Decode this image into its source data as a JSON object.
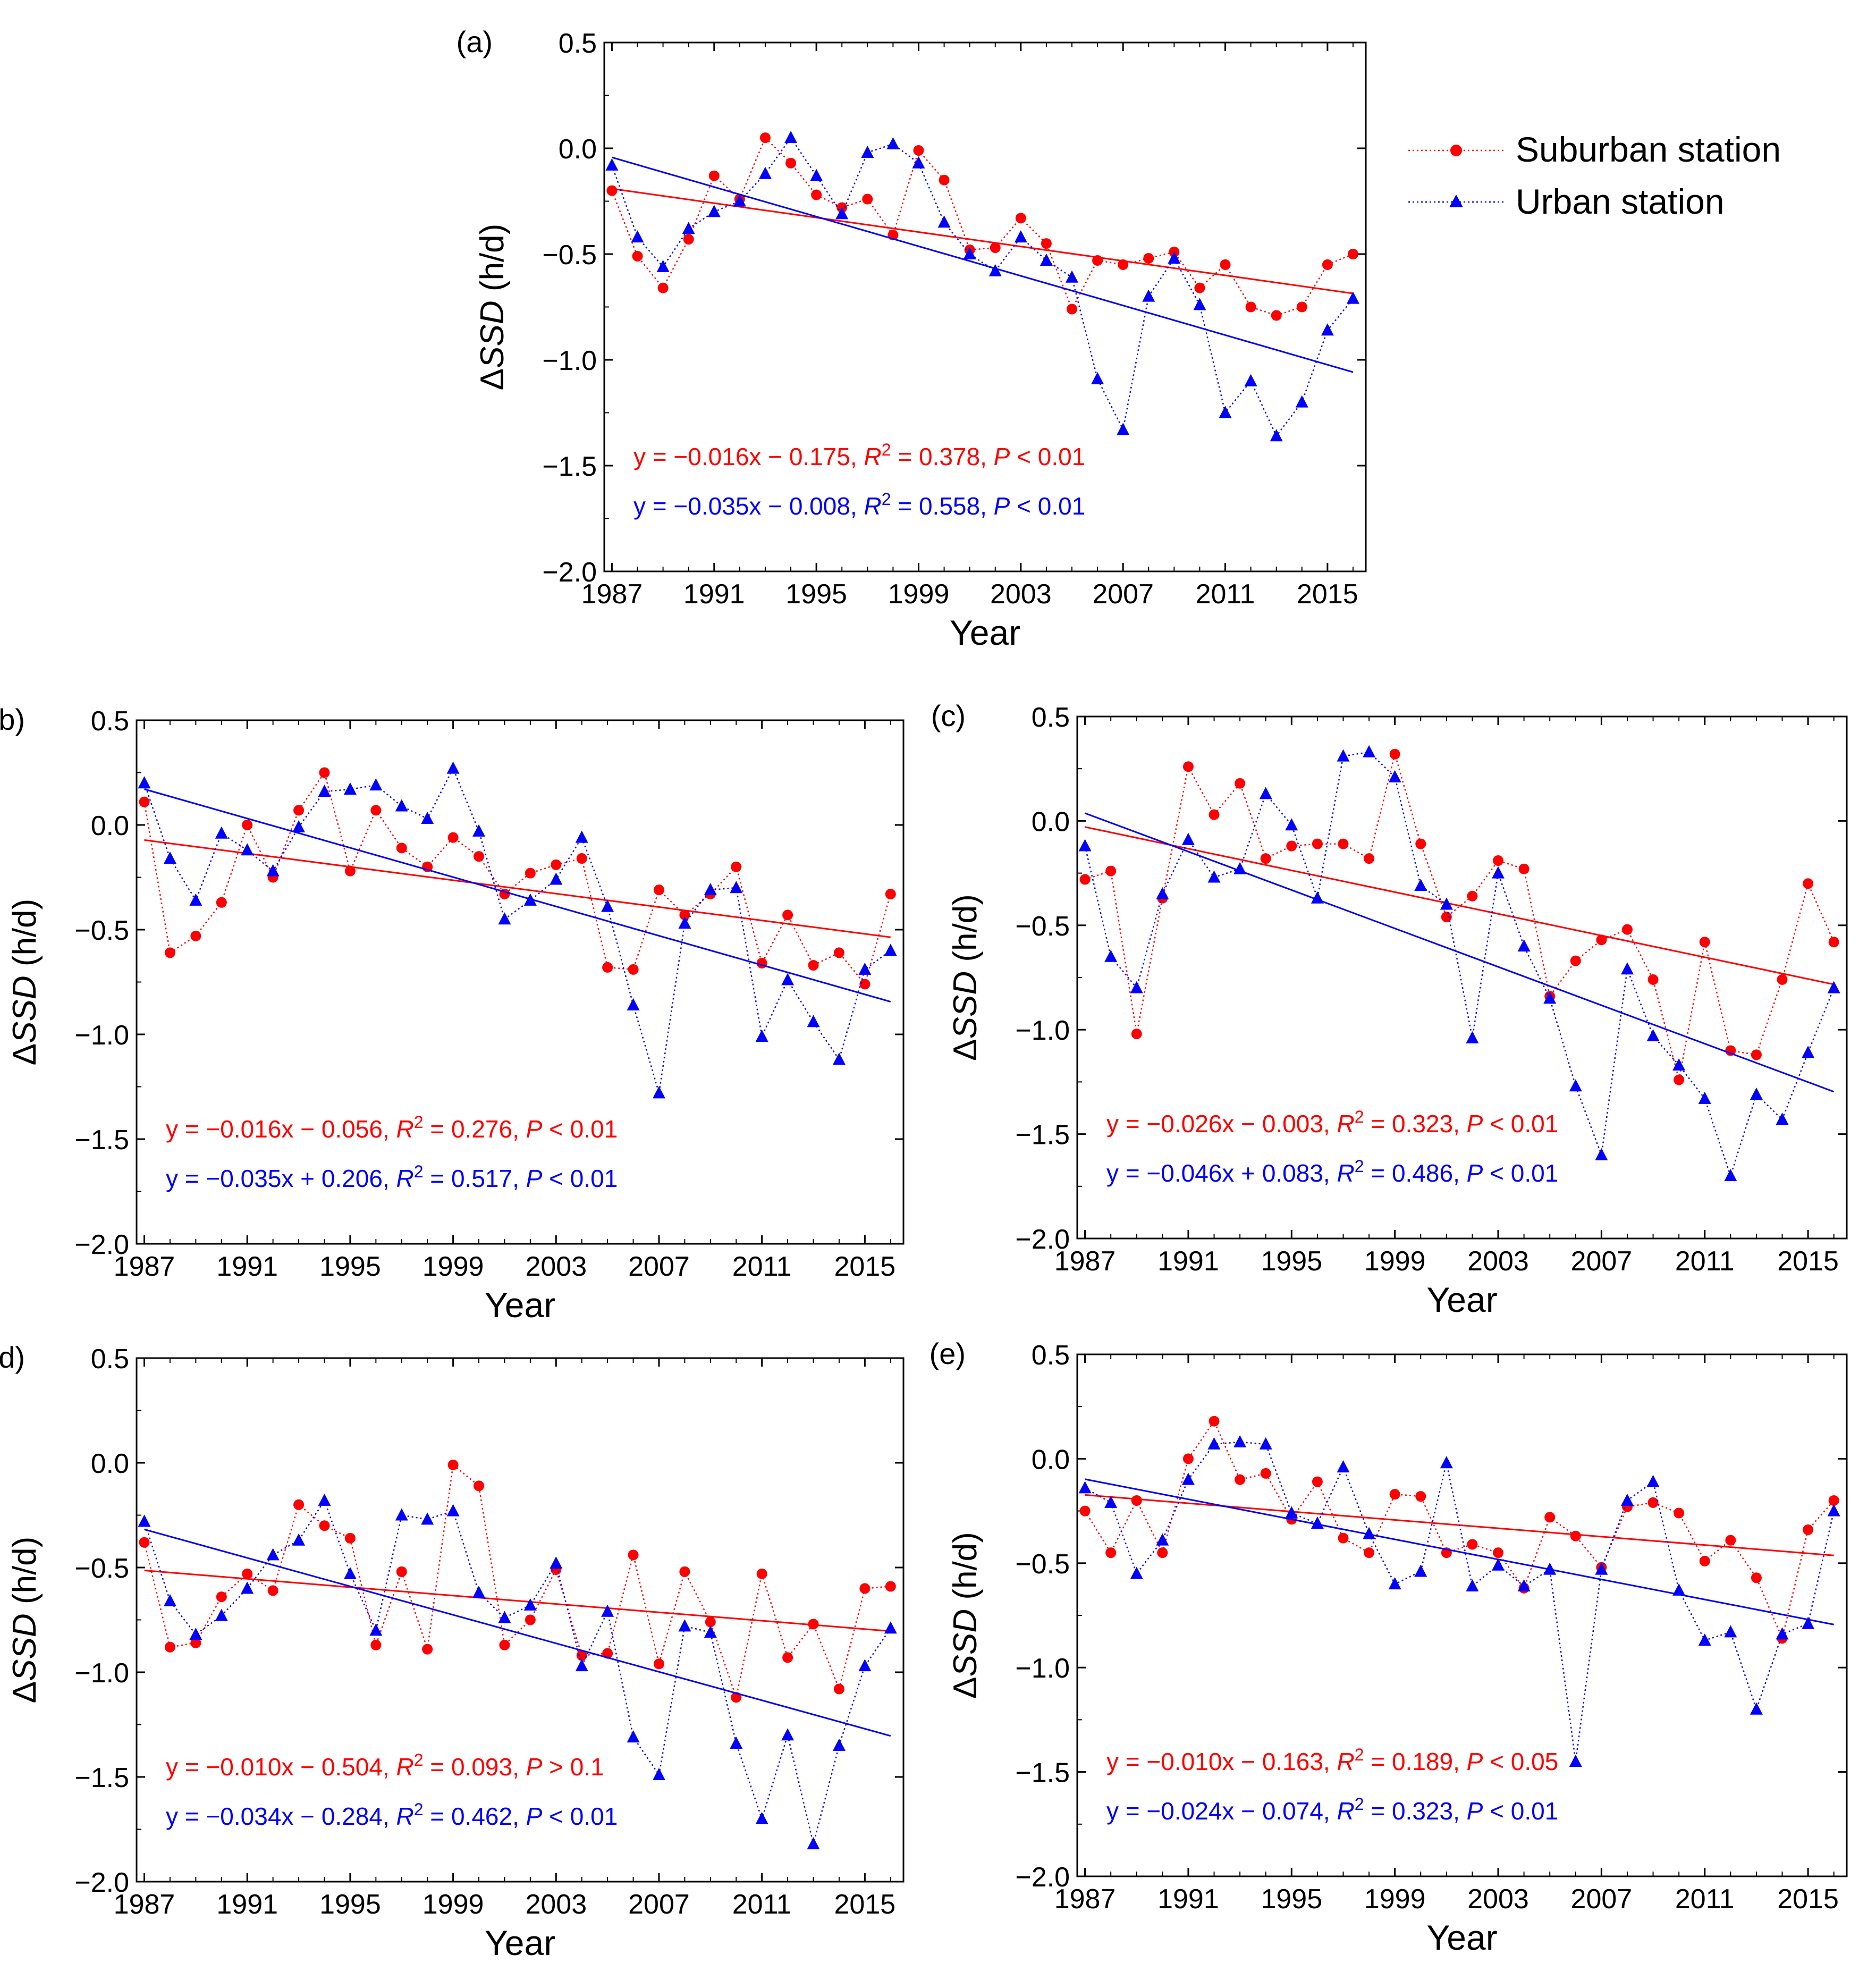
{
  "legend": {
    "suburban_label": "Suburban station",
    "urban_label": "Urban station"
  },
  "colors": {
    "suburban": "#ff0000",
    "urban": "#0000ff",
    "axis": "#000000"
  },
  "chart_data": [
    {
      "panel": "(a)",
      "type": "line",
      "xlabel": "Year",
      "ylabel_delta": "Δ",
      "ylabel_italic": "SSD",
      "ylabel_unit": " (h/d)",
      "xlim": [
        1986.7,
        2016.5
      ],
      "ylim": [
        -2.0,
        0.5
      ],
      "xticks": [
        1987,
        1991,
        1995,
        1999,
        2003,
        2007,
        2011,
        2015
      ],
      "yticks": [
        0.5,
        0.0,
        -0.5,
        -1.0,
        -1.5,
        -2.0
      ],
      "ytick_labels": [
        "0.5",
        "0.0",
        "−0.5",
        "−1.0",
        "−1.5",
        "−2.0"
      ],
      "x": [
        1987,
        1988,
        1989,
        1990,
        1991,
        1992,
        1993,
        1994,
        1995,
        1996,
        1997,
        1998,
        1999,
        2000,
        2001,
        2002,
        2003,
        2004,
        2005,
        2006,
        2007,
        2008,
        2009,
        2010,
        2011,
        2012,
        2013,
        2014,
        2015,
        2016
      ],
      "series": [
        {
          "name": "Suburban station",
          "values": [
            -0.2,
            -0.51,
            -0.66,
            -0.43,
            -0.13,
            -0.24,
            0.05,
            -0.07,
            -0.22,
            -0.28,
            -0.24,
            -0.41,
            -0.01,
            -0.15,
            -0.48,
            -0.47,
            -0.33,
            -0.45,
            -0.76,
            -0.53,
            -0.55,
            -0.52,
            -0.49,
            -0.66,
            -0.55,
            -0.75,
            -0.79,
            -0.75,
            -0.55,
            -0.5
          ],
          "fit": [
            -0.191,
            -0.686
          ],
          "equation": {
            "eq": "y = −0.016x − 0.175, ",
            "r2": "= 0.378, ",
            "p": " < 0.01"
          }
        },
        {
          "name": "Urban station",
          "values": [
            -0.08,
            -0.42,
            -0.56,
            -0.38,
            -0.3,
            -0.25,
            -0.12,
            0.05,
            -0.13,
            -0.31,
            -0.02,
            0.02,
            -0.07,
            -0.35,
            -0.5,
            -0.58,
            -0.42,
            -0.53,
            -0.61,
            -1.09,
            -1.33,
            -0.7,
            -0.52,
            -0.74,
            -1.25,
            -1.1,
            -1.36,
            -1.2,
            -0.86,
            -0.71
          ],
          "fit": [
            -0.043,
            -1.058
          ],
          "equation": {
            "eq": "y = −0.035x − 0.008, ",
            "r2": "= 0.558, ",
            "p": " < 0.01"
          }
        }
      ]
    },
    {
      "panel": "(b)",
      "type": "line",
      "xlabel": "Year",
      "ylabel_delta": "Δ",
      "ylabel_italic": "SSD",
      "ylabel_unit": " (h/d)",
      "xlim": [
        1986.7,
        2016.5
      ],
      "ylim": [
        -2.0,
        0.5
      ],
      "xticks": [
        1987,
        1991,
        1995,
        1999,
        2003,
        2007,
        2011,
        2015
      ],
      "yticks": [
        0.5,
        0.0,
        -0.5,
        -1.0,
        -1.5,
        -2.0
      ],
      "ytick_labels": [
        "0.5",
        "0.0",
        "−0.5",
        "−1.0",
        "−1.5",
        "−2.0"
      ],
      "x": [
        1987,
        1988,
        1989,
        1990,
        1991,
        1992,
        1993,
        1994,
        1995,
        1996,
        1997,
        1998,
        1999,
        2000,
        2001,
        2002,
        2003,
        2004,
        2005,
        2006,
        2007,
        2008,
        2009,
        2010,
        2011,
        2012,
        2013,
        2014,
        2015,
        2016
      ],
      "series": [
        {
          "name": "Suburban station",
          "values": [
            0.11,
            -0.61,
            -0.53,
            -0.37,
            0.0,
            -0.25,
            0.07,
            0.25,
            -0.22,
            0.07,
            -0.11,
            -0.2,
            -0.06,
            -0.15,
            -0.33,
            -0.23,
            -0.19,
            -0.16,
            -0.68,
            -0.69,
            -0.31,
            -0.43,
            -0.33,
            -0.2,
            -0.66,
            -0.43,
            -0.67,
            -0.61,
            -0.76,
            -0.33
          ],
          "fit": [
            -0.072,
            -0.536
          ],
          "equation": {
            "eq": "y = −0.016x − 0.056, ",
            "r2": "= 0.276, ",
            "p": " < 0.01"
          }
        },
        {
          "name": "Urban station",
          "values": [
            0.2,
            -0.16,
            -0.36,
            -0.04,
            -0.12,
            -0.22,
            -0.01,
            0.16,
            0.17,
            0.19,
            0.09,
            0.03,
            0.27,
            -0.03,
            -0.45,
            -0.36,
            -0.26,
            -0.06,
            -0.39,
            -0.86,
            -1.28,
            -0.47,
            -0.31,
            -0.3,
            -1.01,
            -0.74,
            -0.94,
            -1.12,
            -0.69,
            -0.6
          ],
          "fit": [
            0.171,
            -0.844
          ],
          "equation": {
            "eq": "y = −0.035x + 0.206, ",
            "r2": "= 0.517, ",
            "p": " < 0.01"
          }
        }
      ]
    },
    {
      "panel": "(c)",
      "type": "line",
      "xlabel": "Year",
      "ylabel_delta": "Δ",
      "ylabel_italic": "SSD",
      "ylabel_unit": " (h/d)",
      "xlim": [
        1986.7,
        2016.5
      ],
      "ylim": [
        -2.0,
        0.5
      ],
      "xticks": [
        1987,
        1991,
        1995,
        1999,
        2003,
        2007,
        2011,
        2015
      ],
      "yticks": [
        0.5,
        0.0,
        -0.5,
        -1.0,
        -1.5,
        -2.0
      ],
      "ytick_labels": [
        "0.5",
        "0.0",
        "−0.5",
        "−1.0",
        "−1.5",
        "−2.0"
      ],
      "x": [
        1987,
        1988,
        1989,
        1990,
        1991,
        1992,
        1993,
        1994,
        1995,
        1996,
        1997,
        1998,
        1999,
        2000,
        2001,
        2002,
        2003,
        2004,
        2005,
        2006,
        2007,
        2008,
        2009,
        2010,
        2011,
        2012,
        2013,
        2014,
        2015,
        2016
      ],
      "series": [
        {
          "name": "Suburban station",
          "values": [
            -0.28,
            -0.24,
            -1.02,
            -0.37,
            0.26,
            0.03,
            0.18,
            -0.18,
            -0.12,
            -0.11,
            -0.11,
            -0.18,
            0.32,
            -0.11,
            -0.46,
            -0.36,
            -0.19,
            -0.23,
            -0.84,
            -0.67,
            -0.57,
            -0.52,
            -0.76,
            -1.24,
            -0.58,
            -1.1,
            -1.12,
            -0.76,
            -0.3,
            -0.58
          ],
          "fit": [
            -0.029,
            -0.783
          ],
          "equation": {
            "eq": "y = −0.026x − 0.003, ",
            "r2": "= 0.323, ",
            "p": " < 0.01"
          }
        },
        {
          "name": "Urban station",
          "values": [
            -0.12,
            -0.65,
            -0.8,
            -0.35,
            -0.09,
            -0.27,
            -0.23,
            0.13,
            -0.02,
            -0.37,
            0.31,
            0.33,
            0.21,
            -0.31,
            -0.4,
            -1.04,
            -0.25,
            -0.6,
            -0.85,
            -1.27,
            -1.6,
            -0.71,
            -1.03,
            -1.17,
            -1.33,
            -1.7,
            -1.31,
            -1.43,
            -1.11,
            -0.8
          ],
          "fit": [
            0.037,
            -1.297
          ],
          "equation": {
            "eq": "y = −0.046x + 0.083, ",
            "r2": "= 0.486, ",
            "p": " < 0.01"
          }
        }
      ]
    },
    {
      "panel": "(d)",
      "type": "line",
      "xlabel": "Year",
      "ylabel_delta": "Δ",
      "ylabel_italic": "SSD",
      "ylabel_unit": " (h/d)",
      "xlim": [
        1986.7,
        2016.5
      ],
      "ylim": [
        -2.0,
        0.5
      ],
      "xticks": [
        1987,
        1991,
        1995,
        1999,
        2003,
        2007,
        2011,
        2015
      ],
      "yticks": [
        0.5,
        0.0,
        -0.5,
        -1.0,
        -1.5,
        -2.0
      ],
      "ytick_labels": [
        "0.5",
        "0.0",
        "−0.5",
        "−1.0",
        "−1.5",
        "−2.0"
      ],
      "x": [
        1987,
        1988,
        1989,
        1990,
        1991,
        1992,
        1993,
        1994,
        1995,
        1996,
        1997,
        1998,
        1999,
        2000,
        2001,
        2002,
        2003,
        2004,
        2005,
        2006,
        2007,
        2008,
        2009,
        2010,
        2011,
        2012,
        2013,
        2014,
        2015,
        2016
      ],
      "series": [
        {
          "name": "Suburban station",
          "values": [
            -0.38,
            -0.88,
            -0.86,
            -0.64,
            -0.53,
            -0.61,
            -0.2,
            -0.3,
            -0.36,
            -0.87,
            -0.52,
            -0.89,
            -0.01,
            -0.11,
            -0.87,
            -0.75,
            -0.51,
            -0.92,
            -0.91,
            -0.44,
            -0.96,
            -0.52,
            -0.76,
            -1.12,
            -0.53,
            -0.93,
            -0.77,
            -1.08,
            -0.6,
            -0.59
          ],
          "fit": [
            -0.514,
            -0.804
          ],
          "equation": {
            "eq": "y = −0.010x − 0.504, ",
            "r2": "= 0.093, ",
            "p": " > 0.1"
          }
        },
        {
          "name": "Urban station",
          "values": [
            -0.28,
            -0.66,
            -0.82,
            -0.73,
            -0.6,
            -0.44,
            -0.37,
            -0.18,
            -0.53,
            -0.8,
            -0.25,
            -0.27,
            -0.23,
            -0.62,
            -0.74,
            -0.68,
            -0.48,
            -0.97,
            -0.71,
            -1.31,
            -1.49,
            -0.78,
            -0.81,
            -1.34,
            -1.7,
            -1.3,
            -1.82,
            -1.35,
            -0.97,
            -0.79
          ],
          "fit": [
            -0.318,
            -1.304
          ],
          "equation": {
            "eq": "y = −0.034x − 0.284, ",
            "r2": "= 0.462, ",
            "p": " < 0.01"
          }
        }
      ]
    },
    {
      "panel": "(e)",
      "type": "line",
      "xlabel": "Year",
      "ylabel_delta": "Δ",
      "ylabel_italic": "SSD",
      "ylabel_unit": " (h/d)",
      "xlim": [
        1986.7,
        2016.5
      ],
      "ylim": [
        -2.0,
        0.5
      ],
      "xticks": [
        1987,
        1991,
        1995,
        1999,
        2003,
        2007,
        2011,
        2015
      ],
      "yticks": [
        0.5,
        0.0,
        -0.5,
        -1.0,
        -1.5,
        -2.0
      ],
      "ytick_labels": [
        "0.5",
        "0.0",
        "−0.5",
        "−1.0",
        "−1.5",
        "−2.0"
      ],
      "x": [
        1987,
        1988,
        1989,
        1990,
        1991,
        1992,
        1993,
        1994,
        1995,
        1996,
        1997,
        1998,
        1999,
        2000,
        2001,
        2002,
        2003,
        2004,
        2005,
        2006,
        2007,
        2008,
        2009,
        2010,
        2011,
        2012,
        2013,
        2014,
        2015,
        2016
      ],
      "series": [
        {
          "name": "Suburban station",
          "values": [
            -0.25,
            -0.45,
            -0.2,
            -0.45,
            0.0,
            0.18,
            -0.1,
            -0.07,
            -0.29,
            -0.11,
            -0.38,
            -0.45,
            -0.17,
            -0.18,
            -0.45,
            -0.41,
            -0.45,
            -0.62,
            -0.28,
            -0.37,
            -0.52,
            -0.23,
            -0.21,
            -0.26,
            -0.49,
            -0.39,
            -0.57,
            -0.86,
            -0.34,
            -0.2
          ],
          "fit": [
            -0.173,
            -0.463
          ],
          "equation": {
            "eq": "y = −0.010x − 0.163, ",
            "r2": "= 0.189, ",
            "p": " < 0.05"
          }
        },
        {
          "name": "Urban station",
          "values": [
            -0.14,
            -0.21,
            -0.55,
            -0.39,
            -0.1,
            0.07,
            0.08,
            0.07,
            -0.26,
            -0.31,
            -0.04,
            -0.36,
            -0.6,
            -0.54,
            -0.02,
            -0.61,
            -0.51,
            -0.61,
            -0.53,
            -1.45,
            -0.53,
            -0.2,
            -0.11,
            -0.63,
            -0.87,
            -0.83,
            -1.2,
            -0.84,
            -0.79,
            -0.25
          ],
          "fit": [
            -0.098,
            -0.794
          ],
          "equation": {
            "eq": "y = −0.024x − 0.074, ",
            "r2": "= 0.323, ",
            "p": " < 0.01"
          }
        }
      ]
    }
  ]
}
